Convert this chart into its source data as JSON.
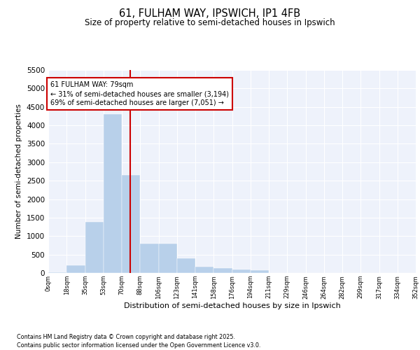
{
  "title1": "61, FULHAM WAY, IPSWICH, IP1 4FB",
  "title2": "Size of property relative to semi-detached houses in Ipswich",
  "xlabel": "Distribution of semi-detached houses by size in Ipswich",
  "ylabel": "Number of semi-detached properties",
  "bin_edges": [
    0,
    17.65,
    35.3,
    52.95,
    70.6,
    88.25,
    105.9,
    123.55,
    141.2,
    158.85,
    176.5,
    194.15,
    211.8,
    229.45,
    247.1,
    264.75,
    282.4,
    300.05,
    317.7,
    335.35,
    353.0
  ],
  "bar_heights": [
    20,
    200,
    1390,
    4300,
    2650,
    800,
    800,
    400,
    175,
    125,
    100,
    80,
    0,
    0,
    0,
    0,
    0,
    0,
    0,
    0
  ],
  "bar_color": "#b8d0ea",
  "bar_edgecolor": "#b8d0ea",
  "vline_x": 79,
  "vline_color": "#cc0000",
  "annotation_line1": "61 FULHAM WAY: 79sqm",
  "annotation_line2": "← 31% of semi-detached houses are smaller (3,194)",
  "annotation_line3": "69% of semi-detached houses are larger (7,051) →",
  "ylim": [
    0,
    5500
  ],
  "xlim": [
    0,
    353.0
  ],
  "tick_labels": [
    "0sqm",
    "18sqm",
    "35sqm",
    "53sqm",
    "70sqm",
    "88sqm",
    "106sqm",
    "123sqm",
    "141sqm",
    "158sqm",
    "176sqm",
    "194sqm",
    "211sqm",
    "229sqm",
    "246sqm",
    "264sqm",
    "282sqm",
    "299sqm",
    "317sqm",
    "334sqm",
    "352sqm"
  ],
  "tick_positions": [
    0,
    17.65,
    35.3,
    52.95,
    70.6,
    88.25,
    105.9,
    123.55,
    141.2,
    158.85,
    176.5,
    194.15,
    211.8,
    229.45,
    247.1,
    264.75,
    282.4,
    300.05,
    317.7,
    335.35,
    353.0
  ],
  "background_color": "#eef2fb",
  "footer_text": "Contains HM Land Registry data © Crown copyright and database right 2025.\nContains public sector information licensed under the Open Government Licence v3.0.",
  "grid_color": "#ffffff",
  "yticks": [
    0,
    500,
    1000,
    1500,
    2000,
    2500,
    3000,
    3500,
    4000,
    4500,
    5000,
    5500
  ]
}
